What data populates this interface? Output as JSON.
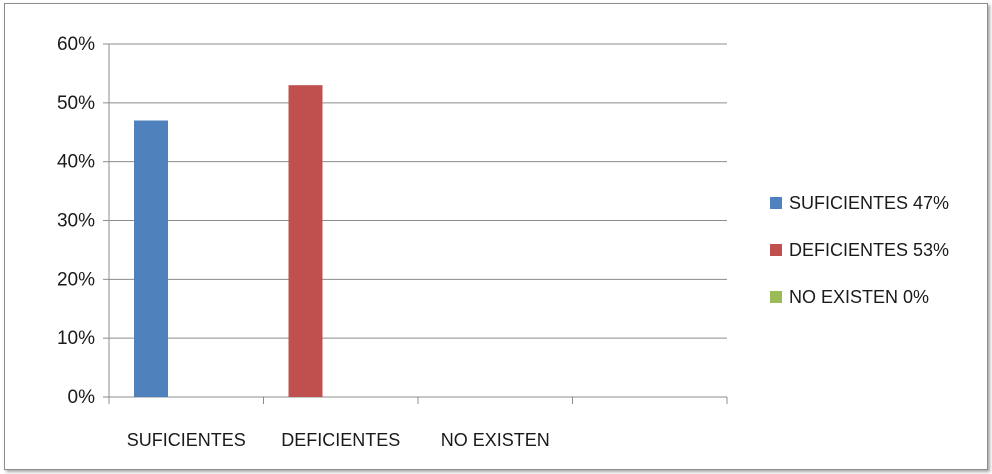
{
  "chart_data": {
    "type": "bar",
    "title": "",
    "xlabel": "",
    "ylabel": "",
    "categories": [
      "SUFICIENTES",
      "DEFICIENTES",
      "NO EXISTEN"
    ],
    "series": [
      {
        "name": "SUFICIENTES 47%",
        "color": "#4f81bd",
        "values": [
          47,
          null,
          null
        ]
      },
      {
        "name": "DEFICIENTES 53%",
        "color": "#c0504d",
        "values": [
          null,
          53,
          null
        ]
      },
      {
        "name": "NO EXISTEN 0%",
        "color": "#9bbb59",
        "values": [
          null,
          null,
          0
        ]
      }
    ],
    "display_values": [
      47,
      53,
      0
    ],
    "ylim": [
      0,
      60
    ],
    "yticks": [
      0,
      10,
      20,
      30,
      40,
      50,
      60
    ],
    "ytick_labels": [
      "0%",
      "10%",
      "20%",
      "30%",
      "40%",
      "50%",
      "60%"
    ],
    "grid": true,
    "legend_position": "right"
  }
}
